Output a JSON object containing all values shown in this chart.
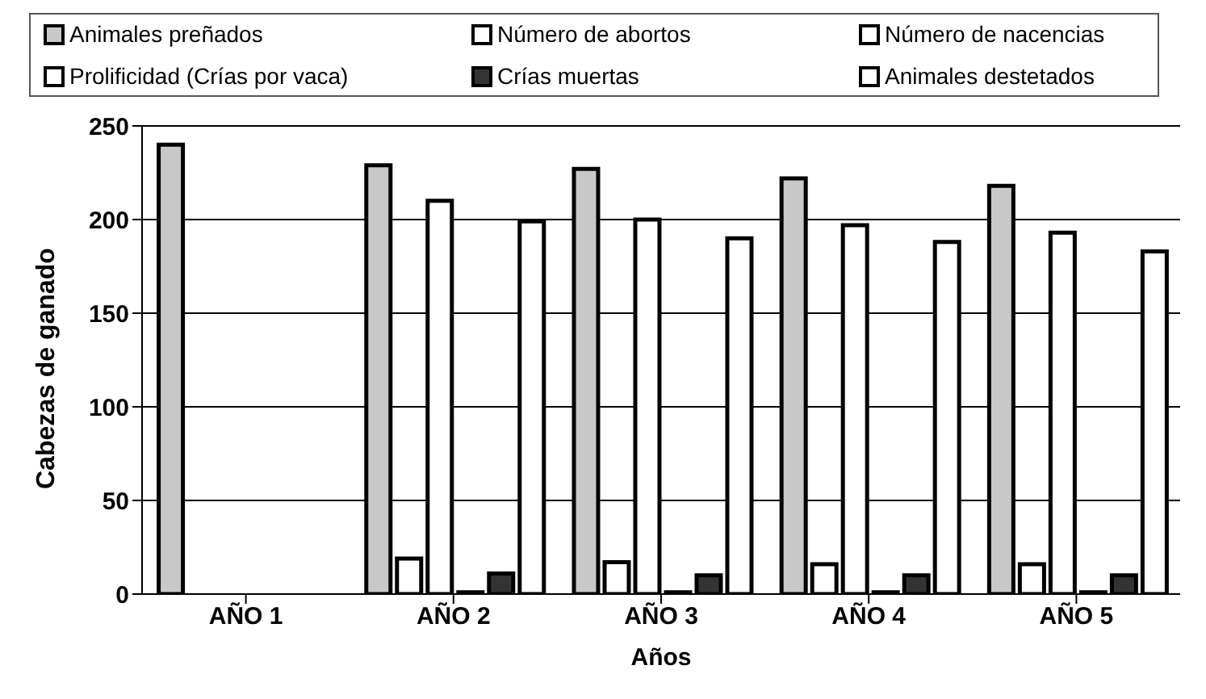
{
  "chart_data": {
    "type": "bar",
    "xlabel": "Años",
    "ylabel": "Cabezas de ganado",
    "categories": [
      "AÑO 1",
      "AÑO 2",
      "AÑO 3",
      "AÑO 4",
      "AÑO 5"
    ],
    "series": [
      {
        "name": "Animales preñados",
        "color": "#c8c8c8",
        "values": [
          240,
          229,
          227,
          222,
          218
        ]
      },
      {
        "name": "Número de abortos",
        "color": "#ffffff",
        "values": [
          null,
          19,
          17,
          16,
          16
        ]
      },
      {
        "name": "Número de nacencias",
        "color": "#ffffff",
        "values": [
          null,
          210,
          200,
          197,
          193
        ]
      },
      {
        "name": "Prolificidad (Crías por vaca)",
        "color": "#ffffff",
        "values": [
          null,
          1,
          1,
          1,
          1
        ]
      },
      {
        "name": "Crías muertas",
        "color": "#333333",
        "values": [
          null,
          11,
          10,
          10,
          10
        ]
      },
      {
        "name": "Animales destetados",
        "color": "#ffffff",
        "values": [
          null,
          199,
          190,
          188,
          183
        ]
      }
    ],
    "ylim": [
      0,
      250
    ],
    "yticks": [
      0,
      50,
      100,
      150,
      200,
      250
    ],
    "grid": "y",
    "legend": "top"
  }
}
